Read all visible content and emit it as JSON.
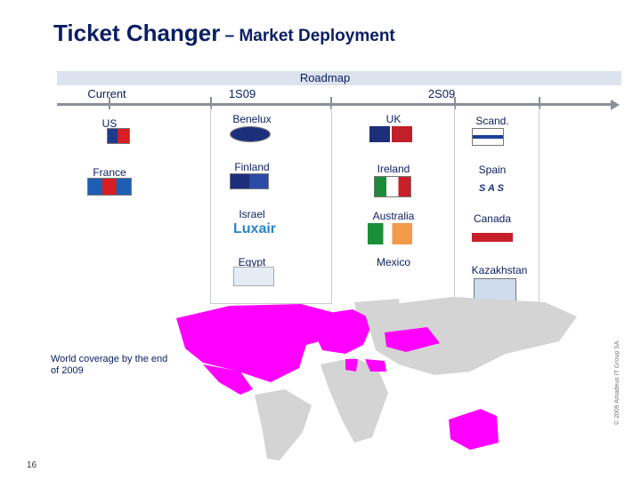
{
  "header": {
    "title_main": "Ticket Changer",
    "title_sub": " – Market Deployment"
  },
  "roadmap": {
    "label": "Roadmap",
    "phases": [
      "Current",
      "1S09",
      "2S09"
    ]
  },
  "markets": {
    "current": [
      "US",
      "France"
    ],
    "s1_col1": [
      "Benelux",
      "Finland",
      "Israel",
      "Egypt"
    ],
    "s2_col1": [
      "UK",
      "Ireland",
      "Australia",
      "Mexico"
    ],
    "s2_col2": [
      "Scand.",
      "Spain",
      "Canada",
      "Kazakhstan"
    ]
  },
  "logos": {
    "spain_logo_text": "S A S",
    "israel_logo_text": "Luxair"
  },
  "map": {
    "note": "World coverage by the end of 2009",
    "covered_color": "#ff00ff",
    "land_color": "#d4d4d4"
  },
  "footer": {
    "page_number": "16",
    "copyright": "© 2009 Amadeus IT Group SA"
  }
}
